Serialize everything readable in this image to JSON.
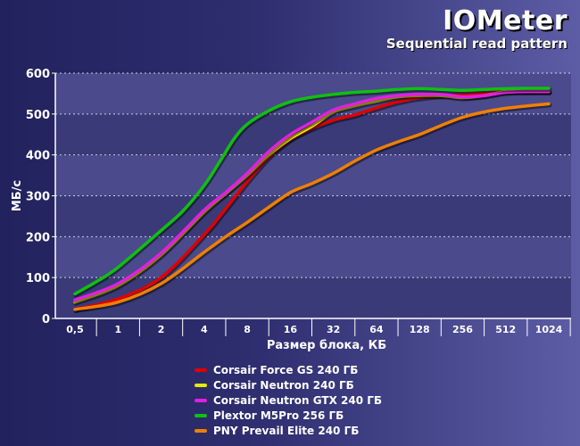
{
  "chart_data": {
    "type": "line",
    "title": "IOMeter",
    "subtitle": "Sequential read pattern",
    "xlabel": "Размер блока, КБ",
    "ylabel": "МБ/с",
    "ylim": [
      0,
      600
    ],
    "yticks": [
      0,
      100,
      200,
      300,
      400,
      500,
      600
    ],
    "categories": [
      "0,5",
      "1",
      "2",
      "4",
      "8",
      "16",
      "32",
      "64",
      "128",
      "256",
      "512",
      "1024"
    ],
    "series": [
      {
        "name": "Corsair Force GS 240 ГБ",
        "color": "#e00000",
        "x": [
          0,
          1,
          2,
          3,
          3.4,
          4,
          4.5,
          5,
          5.5,
          6,
          6.5,
          7,
          7.5,
          8,
          8.5,
          9,
          9.5,
          10,
          10.5,
          11
        ],
        "values": [
          22,
          48,
          100,
          205,
          255,
          335,
          395,
          438,
          465,
          485,
          498,
          515,
          530,
          540,
          545,
          547,
          550,
          555,
          555,
          555
        ]
      },
      {
        "name": "Corsair Neutron 240 ГБ",
        "color": "#e8e800",
        "x": [
          0,
          1,
          2,
          3,
          3.5,
          4,
          4.5,
          5,
          5.5,
          6,
          6.5,
          7,
          7.5,
          8,
          8.5,
          9,
          9.5,
          10,
          10.5,
          11
        ],
        "values": [
          40,
          80,
          155,
          260,
          305,
          350,
          400,
          440,
          470,
          505,
          520,
          532,
          542,
          545,
          545,
          540,
          545,
          555,
          555,
          555
        ]
      },
      {
        "name": "Corsair Neutron GTX 240 ГБ",
        "color": "#e020e0",
        "x": [
          0,
          1,
          2,
          3,
          3.5,
          4,
          4.5,
          5,
          5.5,
          6,
          6.5,
          7,
          7.5,
          8,
          8.5,
          9,
          9.5,
          10,
          10.5,
          11
        ],
        "values": [
          45,
          85,
          160,
          265,
          308,
          355,
          408,
          450,
          480,
          510,
          525,
          538,
          545,
          548,
          548,
          542,
          545,
          553,
          555,
          555
        ]
      },
      {
        "name": "Plextor M5Pro 256 ГБ",
        "color": "#10c010",
        "x": [
          0,
          0.5,
          1,
          2,
          2.5,
          3,
          3.4,
          3.7,
          4,
          4.5,
          5,
          5.5,
          6,
          6.5,
          7,
          7.5,
          8,
          8.5,
          9,
          9.5,
          10,
          10.5,
          11
        ],
        "values": [
          60,
          90,
          125,
          215,
          262,
          325,
          390,
          440,
          475,
          508,
          530,
          541,
          548,
          553,
          556,
          560,
          562,
          560,
          558,
          560,
          562,
          563,
          563
        ]
      },
      {
        "name": "PNY Prevail Elite 240 ГБ",
        "color": "#f08000",
        "x": [
          0,
          1,
          2,
          3,
          3.5,
          4,
          4.5,
          5,
          5.5,
          6,
          6.5,
          7,
          7.5,
          8,
          8.5,
          9,
          9.5,
          10,
          10.5,
          11
        ],
        "values": [
          22,
          40,
          85,
          162,
          200,
          235,
          272,
          308,
          330,
          355,
          385,
          412,
          432,
          450,
          472,
          492,
          505,
          514,
          520,
          525
        ]
      }
    ]
  }
}
